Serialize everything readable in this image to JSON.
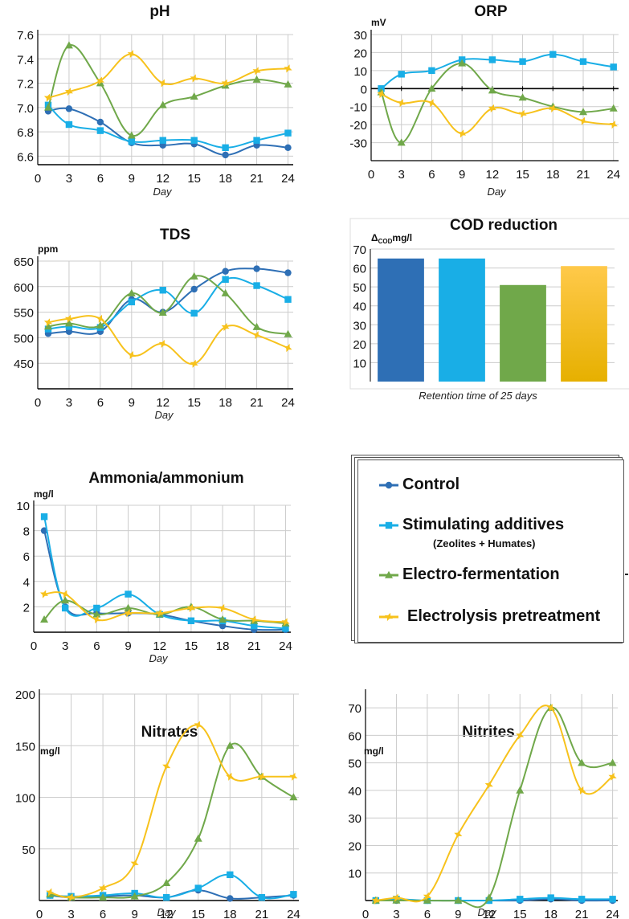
{
  "colors": {
    "control": "#2e6fb5",
    "additives": "#19aee6",
    "electro": "#70a84a",
    "electrolysis": "#f7c21c",
    "grid": "#cccccc",
    "axis": "#000000"
  },
  "legend": {
    "items": [
      {
        "key": "control",
        "label": "Control",
        "sub": "",
        "marker": "circle"
      },
      {
        "key": "additives",
        "label": "Stimulating additives",
        "sub": "(Zeolites + Humates)",
        "marker": "square"
      },
      {
        "key": "electro",
        "label": "Electro-fermentation",
        "sub": "",
        "marker": "triangle"
      },
      {
        "key": "electrolysis",
        "label": "Electrolysis pretreatment",
        "sub": "",
        "marker": "star"
      }
    ]
  },
  "chart_data": [
    {
      "id": "ph",
      "type": "line",
      "title": "pH",
      "unit": "",
      "xlabel": "Day",
      "xticks": [
        0,
        3,
        6,
        9,
        12,
        15,
        18,
        21,
        24
      ],
      "xlim": [
        0,
        24.5
      ],
      "yticks": [
        6.6,
        6.8,
        7.0,
        7.2,
        7.4,
        7.6
      ],
      "ytick_labels": [
        "6.6",
        "6.8",
        "7.0",
        "7.2",
        "7.4",
        "7.6"
      ],
      "ylim": [
        6.53,
        7.6
      ],
      "series": [
        {
          "key": "control",
          "x": [
            1,
            3,
            6,
            9,
            12,
            15,
            18,
            21,
            24
          ],
          "y": [
            6.97,
            6.99,
            6.88,
            6.71,
            6.69,
            6.7,
            6.61,
            6.69,
            6.67
          ]
        },
        {
          "key": "additives",
          "x": [
            1,
            3,
            6,
            9,
            12,
            15,
            18,
            21,
            24
          ],
          "y": [
            7.02,
            6.86,
            6.81,
            6.72,
            6.73,
            6.73,
            6.67,
            6.73,
            6.79
          ]
        },
        {
          "key": "electro",
          "x": [
            1,
            3,
            6,
            9,
            12,
            15,
            18,
            21,
            24
          ],
          "y": [
            7.0,
            7.51,
            7.2,
            6.77,
            7.02,
            7.09,
            7.18,
            7.23,
            7.19
          ]
        },
        {
          "key": "electrolysis",
          "x": [
            1,
            3,
            6,
            9,
            12,
            15,
            18,
            21,
            24
          ],
          "y": [
            7.08,
            7.13,
            7.22,
            7.44,
            7.2,
            7.24,
            7.2,
            7.3,
            7.32
          ]
        }
      ]
    },
    {
      "id": "orp",
      "type": "line",
      "title": "ORP",
      "unit": "mV",
      "xlabel": "Day",
      "xticks": [
        0,
        3,
        6,
        9,
        12,
        15,
        18,
        21,
        24
      ],
      "xlim": [
        0,
        24.5
      ],
      "yticks": [
        -30,
        -20,
        -10,
        0,
        10,
        20,
        30
      ],
      "ytick_labels": [
        "-30",
        "-20",
        "-10",
        "0",
        "10",
        "20",
        "30"
      ],
      "ylim": [
        -40,
        30
      ],
      "zero_axis": true,
      "series": [
        {
          "key": "additives",
          "x": [
            1,
            3,
            6,
            9,
            12,
            15,
            18,
            21,
            24
          ],
          "y": [
            0,
            8,
            10,
            16,
            16,
            15,
            19,
            15,
            12
          ]
        },
        {
          "key": "electro",
          "x": [
            1,
            3,
            6,
            9,
            12,
            15,
            18,
            21,
            24
          ],
          "y": [
            -2,
            -30,
            0,
            14,
            -1,
            -5,
            -10,
            -13,
            -11
          ]
        },
        {
          "key": "electrolysis",
          "x": [
            1,
            3,
            6,
            9,
            12,
            15,
            18,
            21,
            24
          ],
          "y": [
            -3,
            -8,
            -8,
            -25,
            -11,
            -14,
            -11,
            -18,
            -20
          ]
        }
      ]
    },
    {
      "id": "tds",
      "type": "line",
      "title": "TDS",
      "unit": "ppm",
      "xlabel": "Day",
      "xticks": [
        0,
        3,
        6,
        9,
        12,
        15,
        18,
        21,
        24
      ],
      "xlim": [
        0,
        24.5
      ],
      "yticks": [
        450,
        500,
        550,
        600,
        650
      ],
      "ytick_labels": [
        "450",
        "500",
        "550",
        "600",
        "650"
      ],
      "ylim": [
        400,
        650
      ],
      "series": [
        {
          "key": "control",
          "x": [
            1,
            3,
            6,
            9,
            12,
            15,
            18,
            21,
            24
          ],
          "y": [
            508,
            512,
            512,
            575,
            550,
            595,
            630,
            635,
            627
          ]
        },
        {
          "key": "additives",
          "x": [
            1,
            3,
            6,
            9,
            12,
            15,
            18,
            21,
            24
          ],
          "y": [
            517,
            522,
            520,
            570,
            593,
            548,
            614,
            602,
            575
          ]
        },
        {
          "key": "electro",
          "x": [
            1,
            3,
            6,
            9,
            12,
            15,
            18,
            21,
            24
          ],
          "y": [
            522,
            528,
            524,
            587,
            549,
            620,
            587,
            521,
            507
          ]
        },
        {
          "key": "electrolysis",
          "x": [
            1,
            3,
            6,
            9,
            12,
            15,
            18,
            21,
            24
          ],
          "y": [
            530,
            537,
            537,
            466,
            488,
            449,
            521,
            505,
            480
          ]
        }
      ]
    },
    {
      "id": "cod",
      "type": "bar",
      "title": "COD reduction",
      "unit_main": "Δ",
      "unit_sub": "COD",
      "unit_suffix": "mg/l",
      "xlabel": "Retention time of 25 days",
      "yticks": [
        10,
        20,
        30,
        40,
        50,
        60,
        70
      ],
      "ytick_labels": [
        "10",
        "20",
        "30",
        "40",
        "50",
        "60",
        "70"
      ],
      "ylim": [
        0,
        70
      ],
      "categories": [
        "control",
        "additives",
        "electro",
        "electrolysis"
      ],
      "values": [
        65,
        65,
        51,
        61
      ]
    },
    {
      "id": "ammonia",
      "type": "line",
      "title": "Ammonia/ammonium",
      "unit": "mg/l",
      "xlabel": "Day",
      "xticks": [
        0,
        3,
        6,
        9,
        12,
        15,
        18,
        21,
        24
      ],
      "xlim": [
        0,
        24.5
      ],
      "yticks": [
        2,
        4,
        6,
        8,
        10
      ],
      "ytick_labels": [
        "2",
        "4",
        "6",
        "8",
        "10"
      ],
      "ylim": [
        0,
        10
      ],
      "series": [
        {
          "key": "control",
          "x": [
            1,
            3,
            6,
            9,
            12,
            15,
            18,
            21,
            24
          ],
          "y": [
            8.0,
            2.0,
            1.5,
            1.5,
            1.4,
            0.9,
            0.5,
            0.2,
            0.2
          ]
        },
        {
          "key": "additives",
          "x": [
            1,
            3,
            6,
            9,
            12,
            15,
            18,
            21,
            24
          ],
          "y": [
            9.1,
            1.9,
            1.9,
            3.0,
            1.4,
            0.9,
            0.9,
            0.5,
            0.3
          ]
        },
        {
          "key": "electro",
          "x": [
            1,
            3,
            6,
            9,
            12,
            15,
            18,
            21,
            24
          ],
          "y": [
            1.0,
            2.5,
            1.4,
            1.9,
            1.4,
            2.0,
            1.0,
            0.9,
            0.7
          ]
        },
        {
          "key": "electrolysis",
          "x": [
            1,
            3,
            6,
            9,
            12,
            15,
            18,
            21,
            24
          ],
          "y": [
            3.0,
            3.0,
            1.0,
            1.5,
            1.5,
            1.9,
            1.9,
            1.0,
            0.8
          ]
        }
      ]
    },
    {
      "id": "nitrates",
      "type": "line",
      "title": "Nitrates",
      "unit": "mg/l",
      "xlabel": "Day",
      "xticks": [
        0,
        3,
        6,
        9,
        12,
        15,
        18,
        21,
        24
      ],
      "xlim": [
        0,
        24.5
      ],
      "yticks": [
        50,
        100,
        150,
        200
      ],
      "ytick_labels": [
        "50",
        "100",
        "150",
        "200"
      ],
      "ylim": [
        0,
        200
      ],
      "series": [
        {
          "key": "control",
          "x": [
            1,
            3,
            6,
            9,
            12,
            15,
            18,
            21,
            24
          ],
          "y": [
            5,
            3,
            4,
            5,
            3,
            10,
            2,
            3,
            5
          ]
        },
        {
          "key": "additives",
          "x": [
            1,
            3,
            6,
            9,
            12,
            15,
            18,
            21,
            24
          ],
          "y": [
            5,
            4,
            5,
            7,
            3,
            12,
            25,
            3,
            6
          ]
        },
        {
          "key": "electro",
          "x": [
            1,
            3,
            6,
            9,
            12,
            15,
            18,
            21,
            24
          ],
          "y": [
            6,
            3,
            3,
            4,
            17,
            60,
            150,
            120,
            100
          ]
        },
        {
          "key": "electrolysis",
          "x": [
            1,
            3,
            6,
            9,
            12,
            15,
            18,
            21,
            24
          ],
          "y": [
            8,
            3,
            12,
            36,
            130,
            170,
            120,
            120,
            120
          ]
        }
      ]
    },
    {
      "id": "nitrites",
      "type": "line",
      "title": "Nitrites",
      "unit": "mg/l",
      "xlabel": "Day",
      "xticks": [
        0,
        3,
        6,
        9,
        12,
        15,
        18,
        21,
        24
      ],
      "xlim": [
        0,
        24.5
      ],
      "yticks": [
        10,
        20,
        30,
        40,
        50,
        60,
        70
      ],
      "ytick_labels": [
        "10",
        "20",
        "30",
        "40",
        "50",
        "60",
        "70"
      ],
      "ylim": [
        0,
        75
      ],
      "series": [
        {
          "key": "control",
          "x": [
            1,
            3,
            6,
            9,
            12,
            15,
            18,
            21,
            24
          ],
          "y": [
            0,
            0,
            0,
            0,
            0,
            0,
            0.5,
            0,
            0
          ]
        },
        {
          "key": "additives",
          "x": [
            1,
            3,
            6,
            9,
            12,
            15,
            18,
            21,
            24
          ],
          "y": [
            0,
            0.5,
            0,
            0,
            0,
            0.5,
            1,
            0.5,
            0.5
          ]
        },
        {
          "key": "electro",
          "x": [
            1,
            3,
            6,
            9,
            12,
            15,
            18,
            21,
            24
          ],
          "y": [
            0,
            0,
            0,
            0,
            1,
            40,
            70,
            50,
            50
          ]
        },
        {
          "key": "electrolysis",
          "x": [
            1,
            3,
            6,
            9,
            12,
            15,
            18,
            21,
            24
          ],
          "y": [
            0,
            1,
            1.5,
            24,
            42,
            60,
            70,
            40,
            45
          ]
        }
      ]
    }
  ]
}
